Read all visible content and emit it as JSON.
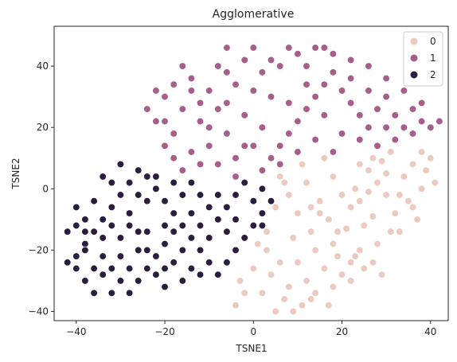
{
  "chart_data": {
    "type": "scatter",
    "title": "Agglomerative",
    "xlabel": "TSNE1",
    "ylabel": "TSNE2",
    "xlim": [
      -45,
      44
    ],
    "ylim": [
      -43,
      53
    ],
    "xticks": [
      -40,
      -20,
      0,
      20,
      40
    ],
    "yticks": [
      -40,
      -20,
      0,
      20,
      40
    ],
    "xtick_labels": [
      "−40",
      "−20",
      "0",
      "20",
      "40"
    ],
    "ytick_labels": [
      "−40",
      "−20",
      "0",
      "20",
      "40"
    ],
    "grid": false,
    "legend_position": "top-right",
    "series": [
      {
        "name": "0",
        "color": "#ebcbc0",
        "points": [
          [
            24,
            -4
          ],
          [
            28,
            2
          ],
          [
            32,
            -8
          ],
          [
            26,
            6
          ],
          [
            34,
            4
          ],
          [
            38,
            0
          ],
          [
            30,
            -2
          ],
          [
            22,
            -6
          ],
          [
            36,
            8
          ],
          [
            40,
            10
          ],
          [
            29,
            9
          ],
          [
            25,
            -12
          ],
          [
            33,
            -14
          ],
          [
            37,
            -10
          ],
          [
            20,
            -2
          ],
          [
            18,
            4
          ],
          [
            23,
            0
          ],
          [
            31,
            12
          ],
          [
            39,
            6
          ],
          [
            35,
            -4
          ],
          [
            27,
            -9
          ],
          [
            21,
            -13
          ],
          [
            17,
            -10
          ],
          [
            13,
            -14
          ],
          [
            10,
            -8
          ],
          [
            8,
            -2
          ],
          [
            12,
            2
          ],
          [
            15,
            -4
          ],
          [
            6,
            4
          ],
          [
            9,
            -16
          ],
          [
            14,
            -20
          ],
          [
            18,
            -18
          ],
          [
            22,
            -24
          ],
          [
            20,
            -28
          ],
          [
            16,
            -26
          ],
          [
            12,
            -30
          ],
          [
            8,
            -32
          ],
          [
            4,
            -28
          ],
          [
            6,
            -24
          ],
          [
            10,
            -24
          ],
          [
            2,
            -34
          ],
          [
            7,
            -36
          ],
          [
            11,
            -38
          ],
          [
            14,
            -34
          ],
          [
            18,
            -32
          ],
          [
            22,
            -30
          ],
          [
            25,
            -26
          ],
          [
            3,
            -20
          ],
          [
            0,
            -26
          ],
          [
            -3,
            -30
          ],
          [
            -2,
            -34
          ],
          [
            -4,
            -38
          ],
          [
            5,
            -40
          ],
          [
            9,
            -40
          ],
          [
            13,
            -36
          ],
          [
            17,
            -38
          ],
          [
            23,
            -22
          ],
          [
            27,
            -24
          ],
          [
            29,
            -28
          ],
          [
            15,
            -8
          ],
          [
            19,
            -14
          ],
          [
            26,
            -1
          ],
          [
            30,
            5
          ],
          [
            33,
            -2
          ],
          [
            36,
            -6
          ],
          [
            41,
            2
          ],
          [
            38,
            12
          ],
          [
            27,
            10
          ],
          [
            24,
            8
          ],
          [
            31,
            -14
          ],
          [
            13,
            -6
          ],
          [
            5,
            -6
          ],
          [
            7,
            2
          ],
          [
            11,
            8
          ],
          [
            16,
            10
          ],
          [
            3,
            -14
          ],
          [
            28,
            -18
          ],
          [
            24,
            -20
          ],
          [
            19,
            -22
          ],
          [
            1,
            -18
          ]
        ]
      },
      {
        "name": "1",
        "color": "#a65e8b",
        "points": [
          [
            -20,
            30
          ],
          [
            -16,
            26
          ],
          [
            -12,
            22
          ],
          [
            -18,
            18
          ],
          [
            -14,
            12
          ],
          [
            -10,
            14
          ],
          [
            -6,
            18
          ],
          [
            -8,
            8
          ],
          [
            -4,
            10
          ],
          [
            -2,
            14
          ],
          [
            -16,
            6
          ],
          [
            -20,
            14
          ],
          [
            -22,
            22
          ],
          [
            -24,
            26
          ],
          [
            -18,
            34
          ],
          [
            -14,
            36
          ],
          [
            -10,
            32
          ],
          [
            -6,
            28
          ],
          [
            -2,
            24
          ],
          [
            2,
            20
          ],
          [
            0,
            14
          ],
          [
            4,
            10
          ],
          [
            6,
            14
          ],
          [
            8,
            18
          ],
          [
            10,
            22
          ],
          [
            12,
            26
          ],
          [
            14,
            30
          ],
          [
            16,
            34
          ],
          [
            18,
            38
          ],
          [
            20,
            32
          ],
          [
            22,
            28
          ],
          [
            24,
            24
          ],
          [
            26,
            20
          ],
          [
            28,
            26
          ],
          [
            30,
            30
          ],
          [
            32,
            24
          ],
          [
            34,
            20
          ],
          [
            36,
            18
          ],
          [
            38,
            22
          ],
          [
            40,
            20
          ],
          [
            42,
            22
          ],
          [
            38,
            28
          ],
          [
            34,
            32
          ],
          [
            30,
            36
          ],
          [
            26,
            40
          ],
          [
            22,
            42
          ],
          [
            18,
            44
          ],
          [
            14,
            46
          ],
          [
            10,
            44
          ],
          [
            6,
            40
          ],
          [
            2,
            38
          ],
          [
            -2,
            42
          ],
          [
            -6,
            46
          ],
          [
            -4,
            34
          ],
          [
            -8,
            40
          ],
          [
            -12,
            28
          ],
          [
            -16,
            40
          ],
          [
            4,
            30
          ],
          [
            8,
            28
          ],
          [
            12,
            34
          ],
          [
            16,
            24
          ],
          [
            20,
            18
          ],
          [
            24,
            16
          ],
          [
            18,
            12
          ],
          [
            14,
            16
          ],
          [
            10,
            12
          ],
          [
            6,
            8
          ],
          [
            2,
            6
          ],
          [
            -10,
            20
          ],
          [
            -4,
            4
          ],
          [
            -12,
            8
          ],
          [
            -8,
            26
          ],
          [
            0,
            32
          ],
          [
            28,
            14
          ],
          [
            32,
            16
          ],
          [
            36,
            26
          ],
          [
            22,
            36
          ],
          [
            16,
            46
          ],
          [
            -20,
            22
          ],
          [
            -14,
            32
          ],
          [
            0,
            46
          ],
          [
            4,
            42
          ],
          [
            12,
            40
          ],
          [
            8,
            46
          ],
          [
            -6,
            38
          ],
          [
            26,
            32
          ],
          [
            30,
            20
          ],
          [
            -18,
            10
          ],
          [
            -22,
            32
          ]
        ]
      },
      {
        "name": "2",
        "color": "#2b1d3e",
        "points": [
          [
            -40,
            -22
          ],
          [
            -38,
            -18
          ],
          [
            -36,
            -14
          ],
          [
            -34,
            -10
          ],
          [
            -32,
            -6
          ],
          [
            -30,
            -2
          ],
          [
            -28,
            2
          ],
          [
            -26,
            6
          ],
          [
            -24,
            4
          ],
          [
            -22,
            0
          ],
          [
            -20,
            -4
          ],
          [
            -18,
            -8
          ],
          [
            -16,
            -12
          ],
          [
            -14,
            -16
          ],
          [
            -12,
            -20
          ],
          [
            -10,
            -24
          ],
          [
            -8,
            -28
          ],
          [
            -6,
            -24
          ],
          [
            -4,
            -20
          ],
          [
            -2,
            -16
          ],
          [
            0,
            -12
          ],
          [
            2,
            -8
          ],
          [
            4,
            -4
          ],
          [
            2,
            0
          ],
          [
            0,
            -4
          ],
          [
            -2,
            2
          ],
          [
            -4,
            -2
          ],
          [
            -6,
            -6
          ],
          [
            -8,
            -10
          ],
          [
            -10,
            -6
          ],
          [
            -12,
            -2
          ],
          [
            -14,
            2
          ],
          [
            -16,
            -2
          ],
          [
            -18,
            -14
          ],
          [
            -20,
            -18
          ],
          [
            -22,
            -22
          ],
          [
            -24,
            -26
          ],
          [
            -26,
            -30
          ],
          [
            -28,
            -34
          ],
          [
            -30,
            -30
          ],
          [
            -32,
            -26
          ],
          [
            -34,
            -22
          ],
          [
            -36,
            -26
          ],
          [
            -38,
            -30
          ],
          [
            -40,
            -26
          ],
          [
            -42,
            -24
          ],
          [
            -36,
            -34
          ],
          [
            -32,
            -34
          ],
          [
            -28,
            -26
          ],
          [
            -24,
            -20
          ],
          [
            -20,
            -12
          ],
          [
            -26,
            -14
          ],
          [
            -30,
            -16
          ],
          [
            -34,
            -16
          ],
          [
            -38,
            -10
          ],
          [
            -40,
            -6
          ],
          [
            -36,
            -4
          ],
          [
            -32,
            2
          ],
          [
            -28,
            -8
          ],
          [
            -24,
            -4
          ],
          [
            -30,
            8
          ],
          [
            -34,
            4
          ],
          [
            -38,
            -14
          ],
          [
            -22,
            -28
          ],
          [
            -18,
            -24
          ],
          [
            -14,
            -26
          ],
          [
            -16,
            -30
          ],
          [
            -20,
            -32
          ],
          [
            -12,
            -28
          ],
          [
            -10,
            -16
          ],
          [
            -6,
            -14
          ],
          [
            -8,
            -2
          ],
          [
            -14,
            -8
          ],
          [
            -26,
            -20
          ],
          [
            -30,
            -22
          ],
          [
            -34,
            -28
          ],
          [
            -38,
            -20
          ],
          [
            -42,
            -14
          ],
          [
            -40,
            -12
          ],
          [
            -26,
            -2
          ],
          [
            -22,
            4
          ],
          [
            -18,
            2
          ],
          [
            -28,
            -12
          ],
          [
            -24,
            -14
          ],
          [
            -32,
            -12
          ],
          [
            -20,
            -26
          ],
          [
            -16,
            -20
          ],
          [
            -12,
            -12
          ],
          [
            -4,
            -10
          ],
          [
            2,
            -12
          ]
        ]
      }
    ]
  },
  "legend": {
    "items": [
      {
        "label": "0",
        "color": "#ebcbc0"
      },
      {
        "label": "1",
        "color": "#a65e8b"
      },
      {
        "label": "2",
        "color": "#2b1d3e"
      }
    ]
  }
}
